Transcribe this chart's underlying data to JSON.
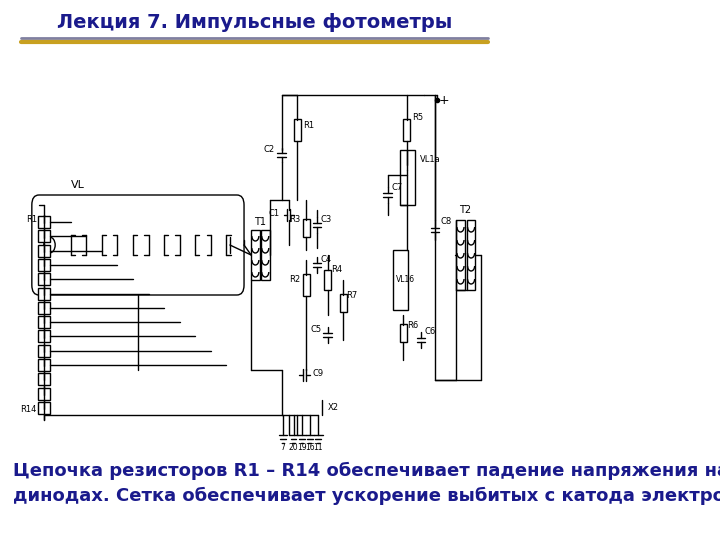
{
  "title": "Лекция 7. Импульсные фотометры",
  "title_color": "#1a1a8c",
  "title_fontsize": 14,
  "title_bold": true,
  "separator_color1": "#8080a0",
  "separator_color2": "#c8a020",
  "bg_color": "#ffffff",
  "text_line1": "Цепочка резисторов R1 – R14 обеспечивает падение напряжения на",
  "text_line2": "динодах. Сетка обеспечивает ускорение выбитых с катода электронов.",
  "text_color": "#1a1a8c",
  "text_fontsize": 13,
  "circuit_color": "#000000",
  "label_fontsize": 7,
  "figsize": [
    7.2,
    5.4
  ],
  "dpi": 100
}
